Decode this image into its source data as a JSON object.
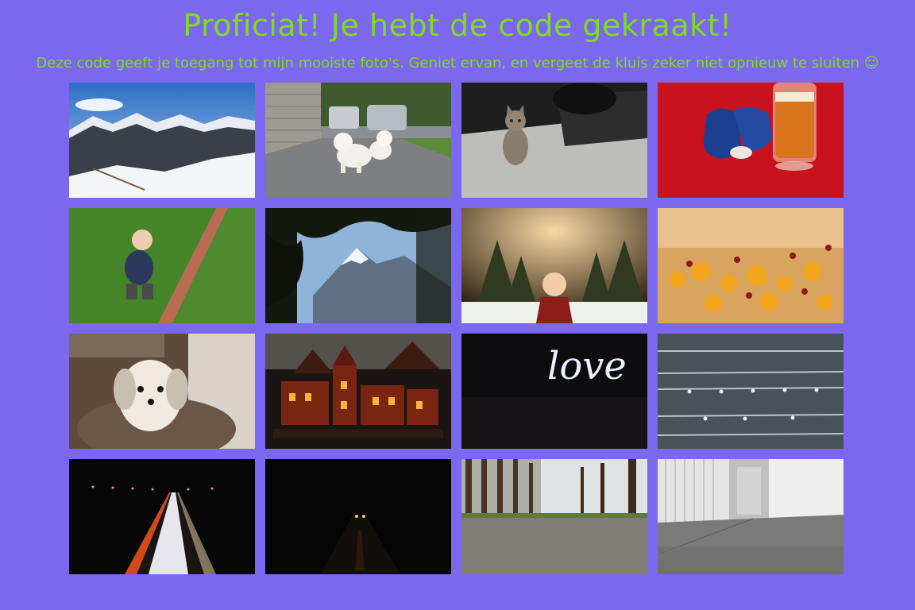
{
  "header": {
    "title": "Proficiat! Je hebt de code gekraakt!",
    "subtitle": "Deze code geeft je toegang tot mijn mooiste foto's. Geniet ervan, en vergeet de kluis zeker niet opnieuw te sluiten ☺"
  },
  "colors": {
    "background": "#7b68ee",
    "heading_text": "#7fdc1f"
  },
  "gallery": {
    "photos": [
      {
        "subject": "snowy-mountains"
      },
      {
        "subject": "white-dog-on-driveway"
      },
      {
        "subject": "kitten"
      },
      {
        "subject": "gloves-and-beer"
      },
      {
        "subject": "laughing-toddler-on-grass"
      },
      {
        "subject": "mountain-through-trees"
      },
      {
        "subject": "child-in-winter-forest"
      },
      {
        "subject": "golden-bokeh-beads"
      },
      {
        "subject": "dog-portrait"
      },
      {
        "subject": "miniature-christmas-village"
      },
      {
        "subject": "light-painting",
        "text": "love"
      },
      {
        "subject": "raindrops-on-wires"
      },
      {
        "subject": "light-trails-night-road"
      },
      {
        "subject": "dark-night-road"
      },
      {
        "subject": "tree-lined-road"
      },
      {
        "subject": "corridor-floor"
      }
    ]
  }
}
